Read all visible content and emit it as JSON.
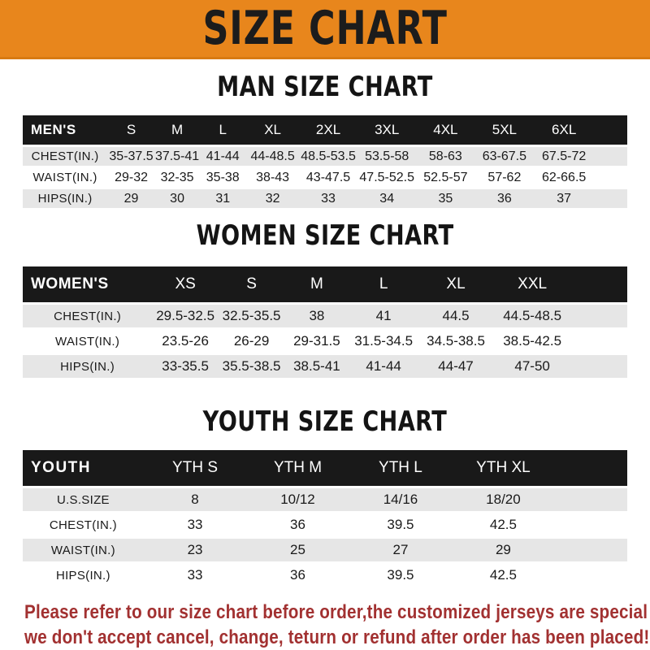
{
  "banner": {
    "title": "SIZE CHART",
    "bg_color": "#e8861c",
    "text_color": "#1c1c1c"
  },
  "colors": {
    "table_header_bg": "#191919",
    "table_header_text": "#ffffff",
    "row_alt_bg": "#e6e6e6",
    "footer_text": "#a23131"
  },
  "chart_data": [
    {
      "type": "table",
      "title": "MAN SIZE CHART",
      "corner_label": "MEN'S",
      "columns": [
        "S",
        "M",
        "L",
        "XL",
        "2XL",
        "3XL",
        "4XL",
        "5XL",
        "6XL"
      ],
      "rows": [
        {
          "label": "CHEST(IN.)",
          "values": [
            "35-37.5",
            "37.5-41",
            "41-44",
            "44-48.5",
            "48.5-53.5",
            "53.5-58",
            "58-63",
            "63-67.5",
            "67.5-72"
          ]
        },
        {
          "label": "WAIST(IN.)",
          "values": [
            "29-32",
            "32-35",
            "35-38",
            "38-43",
            "43-47.5",
            "47.5-52.5",
            "52.5-57",
            "57-62",
            "62-66.5"
          ]
        },
        {
          "label": "HIPS(IN.)",
          "values": [
            "29",
            "30",
            "31",
            "32",
            "33",
            "34",
            "35",
            "36",
            "37"
          ]
        }
      ]
    },
    {
      "type": "table",
      "title": "WOMEN SIZE CHART",
      "corner_label": "WOMEN'S",
      "columns": [
        "XS",
        "S",
        "M",
        "L",
        "XL",
        "XXL"
      ],
      "rows": [
        {
          "label": "CHEST(IN.)",
          "values": [
            "29.5-32.5",
            "32.5-35.5",
            "38",
            "41",
            "44.5",
            "44.5-48.5"
          ]
        },
        {
          "label": "WAIST(IN.)",
          "values": [
            "23.5-26",
            "26-29",
            "29-31.5",
            "31.5-34.5",
            "34.5-38.5",
            "38.5-42.5"
          ]
        },
        {
          "label": "HIPS(IN.)",
          "values": [
            "33-35.5",
            "35.5-38.5",
            "38.5-41",
            "41-44",
            "44-47",
            "47-50"
          ]
        }
      ]
    },
    {
      "type": "table",
      "title": "YOUTH SIZE CHART",
      "corner_label": "YOUTH",
      "columns": [
        "YTH S",
        "YTH M",
        "YTH L",
        "YTH XL"
      ],
      "rows": [
        {
          "label": "U.S.SIZE",
          "values": [
            "8",
            "10/12",
            "14/16",
            "18/20"
          ]
        },
        {
          "label": "CHEST(IN.)",
          "values": [
            "33",
            "36",
            "39.5",
            "42.5"
          ]
        },
        {
          "label": "WAIST(IN.)",
          "values": [
            "23",
            "25",
            "27",
            "29"
          ]
        },
        {
          "label": "HIPS(IN.)",
          "values": [
            "33",
            "36",
            "39.5",
            "42.5"
          ]
        }
      ]
    }
  ],
  "footer": {
    "line1": "Please refer to our size chart before order,the customized jerseys are special products,",
    "line2": "we don't accept cancel, change, teturn or refund after order has been placed!"
  }
}
